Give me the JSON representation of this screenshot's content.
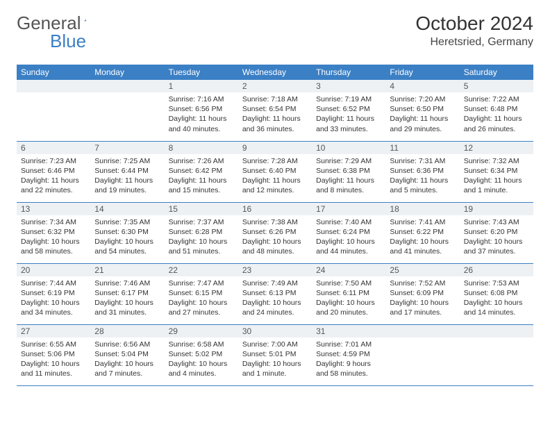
{
  "brand": {
    "part1": "General",
    "part2": "Blue"
  },
  "title": "October 2024",
  "location": "Heretsried, Germany",
  "colors": {
    "header_bg": "#3b7fc4",
    "header_text": "#ffffff",
    "daynum_bg": "#eef1f4",
    "border": "#3b7fc4",
    "body_text": "#333333",
    "background": "#ffffff"
  },
  "day_headers": [
    "Sunday",
    "Monday",
    "Tuesday",
    "Wednesday",
    "Thursday",
    "Friday",
    "Saturday"
  ],
  "weeks": [
    [
      null,
      null,
      {
        "n": "1",
        "sr": "7:16 AM",
        "ss": "6:56 PM",
        "dl": "11 hours and 40 minutes."
      },
      {
        "n": "2",
        "sr": "7:18 AM",
        "ss": "6:54 PM",
        "dl": "11 hours and 36 minutes."
      },
      {
        "n": "3",
        "sr": "7:19 AM",
        "ss": "6:52 PM",
        "dl": "11 hours and 33 minutes."
      },
      {
        "n": "4",
        "sr": "7:20 AM",
        "ss": "6:50 PM",
        "dl": "11 hours and 29 minutes."
      },
      {
        "n": "5",
        "sr": "7:22 AM",
        "ss": "6:48 PM",
        "dl": "11 hours and 26 minutes."
      }
    ],
    [
      {
        "n": "6",
        "sr": "7:23 AM",
        "ss": "6:46 PM",
        "dl": "11 hours and 22 minutes."
      },
      {
        "n": "7",
        "sr": "7:25 AM",
        "ss": "6:44 PM",
        "dl": "11 hours and 19 minutes."
      },
      {
        "n": "8",
        "sr": "7:26 AM",
        "ss": "6:42 PM",
        "dl": "11 hours and 15 minutes."
      },
      {
        "n": "9",
        "sr": "7:28 AM",
        "ss": "6:40 PM",
        "dl": "11 hours and 12 minutes."
      },
      {
        "n": "10",
        "sr": "7:29 AM",
        "ss": "6:38 PM",
        "dl": "11 hours and 8 minutes."
      },
      {
        "n": "11",
        "sr": "7:31 AM",
        "ss": "6:36 PM",
        "dl": "11 hours and 5 minutes."
      },
      {
        "n": "12",
        "sr": "7:32 AM",
        "ss": "6:34 PM",
        "dl": "11 hours and 1 minute."
      }
    ],
    [
      {
        "n": "13",
        "sr": "7:34 AM",
        "ss": "6:32 PM",
        "dl": "10 hours and 58 minutes."
      },
      {
        "n": "14",
        "sr": "7:35 AM",
        "ss": "6:30 PM",
        "dl": "10 hours and 54 minutes."
      },
      {
        "n": "15",
        "sr": "7:37 AM",
        "ss": "6:28 PM",
        "dl": "10 hours and 51 minutes."
      },
      {
        "n": "16",
        "sr": "7:38 AM",
        "ss": "6:26 PM",
        "dl": "10 hours and 48 minutes."
      },
      {
        "n": "17",
        "sr": "7:40 AM",
        "ss": "6:24 PM",
        "dl": "10 hours and 44 minutes."
      },
      {
        "n": "18",
        "sr": "7:41 AM",
        "ss": "6:22 PM",
        "dl": "10 hours and 41 minutes."
      },
      {
        "n": "19",
        "sr": "7:43 AM",
        "ss": "6:20 PM",
        "dl": "10 hours and 37 minutes."
      }
    ],
    [
      {
        "n": "20",
        "sr": "7:44 AM",
        "ss": "6:19 PM",
        "dl": "10 hours and 34 minutes."
      },
      {
        "n": "21",
        "sr": "7:46 AM",
        "ss": "6:17 PM",
        "dl": "10 hours and 31 minutes."
      },
      {
        "n": "22",
        "sr": "7:47 AM",
        "ss": "6:15 PM",
        "dl": "10 hours and 27 minutes."
      },
      {
        "n": "23",
        "sr": "7:49 AM",
        "ss": "6:13 PM",
        "dl": "10 hours and 24 minutes."
      },
      {
        "n": "24",
        "sr": "7:50 AM",
        "ss": "6:11 PM",
        "dl": "10 hours and 20 minutes."
      },
      {
        "n": "25",
        "sr": "7:52 AM",
        "ss": "6:09 PM",
        "dl": "10 hours and 17 minutes."
      },
      {
        "n": "26",
        "sr": "7:53 AM",
        "ss": "6:08 PM",
        "dl": "10 hours and 14 minutes."
      }
    ],
    [
      {
        "n": "27",
        "sr": "6:55 AM",
        "ss": "5:06 PM",
        "dl": "10 hours and 11 minutes."
      },
      {
        "n": "28",
        "sr": "6:56 AM",
        "ss": "5:04 PM",
        "dl": "10 hours and 7 minutes."
      },
      {
        "n": "29",
        "sr": "6:58 AM",
        "ss": "5:02 PM",
        "dl": "10 hours and 4 minutes."
      },
      {
        "n": "30",
        "sr": "7:00 AM",
        "ss": "5:01 PM",
        "dl": "10 hours and 1 minute."
      },
      {
        "n": "31",
        "sr": "7:01 AM",
        "ss": "4:59 PM",
        "dl": "9 hours and 58 minutes."
      },
      null,
      null
    ]
  ],
  "labels": {
    "sunrise": "Sunrise:",
    "sunset": "Sunset:",
    "daylight": "Daylight:"
  }
}
